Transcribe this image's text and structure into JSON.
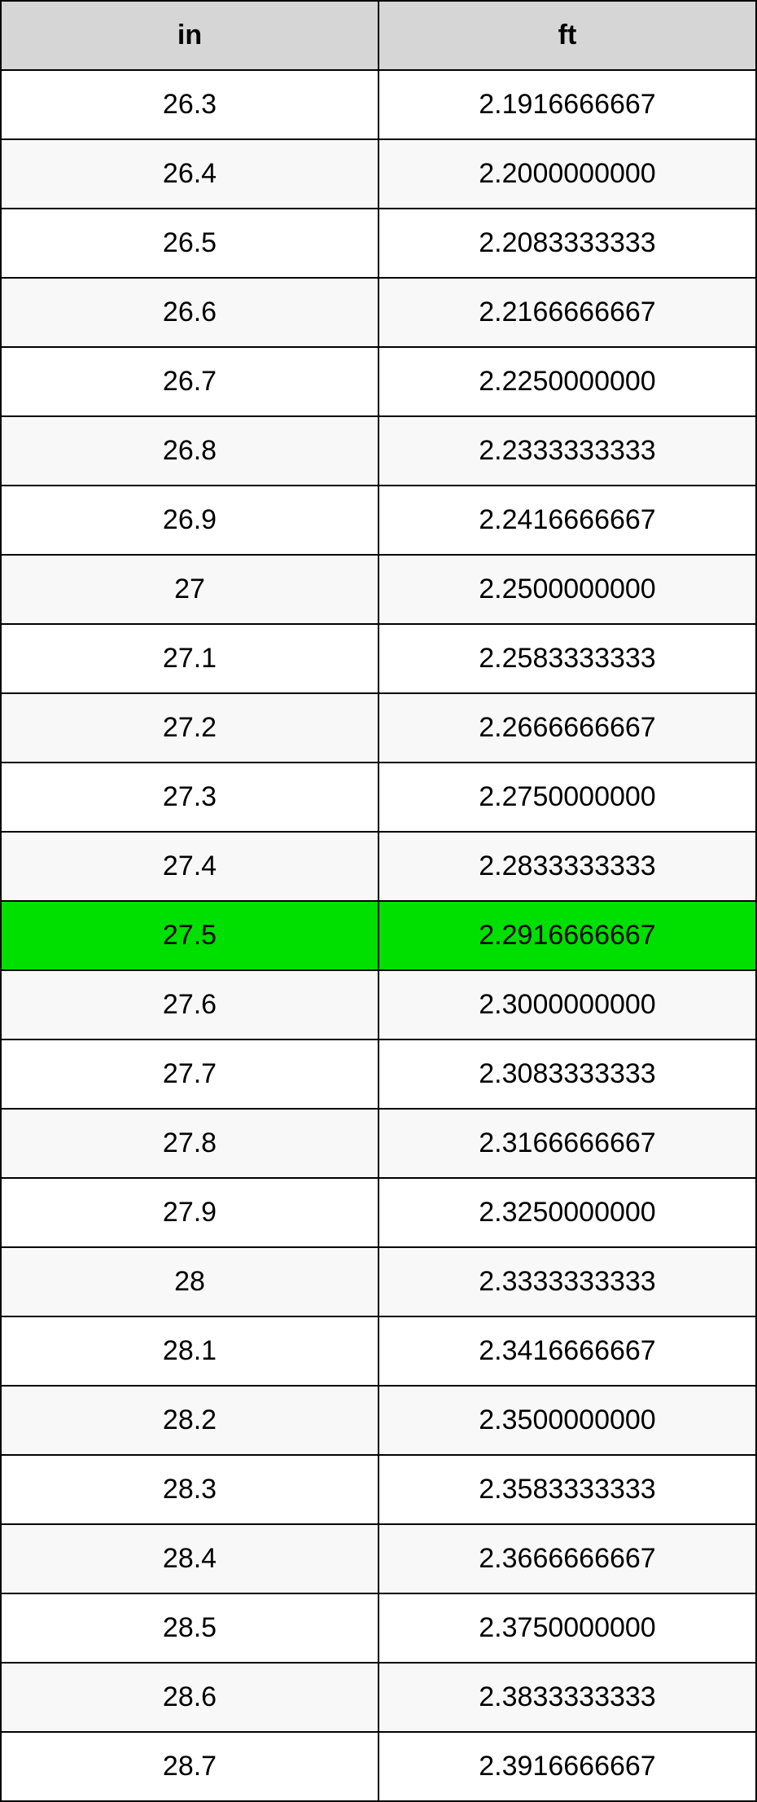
{
  "conversion_table": {
    "type": "table",
    "columns": [
      {
        "label": "in",
        "align": "center"
      },
      {
        "label": "ft",
        "align": "center"
      }
    ],
    "header_bg": "#d6d6d6",
    "row_bg": "#ffffff",
    "row_alt_bg": "#f8f8f8",
    "highlight_bg": "#00e000",
    "border_color": "#000000",
    "font_size": 34,
    "highlight_index": 12,
    "rows": [
      {
        "in": "26.3",
        "ft": "2.1916666667"
      },
      {
        "in": "26.4",
        "ft": "2.2000000000"
      },
      {
        "in": "26.5",
        "ft": "2.2083333333"
      },
      {
        "in": "26.6",
        "ft": "2.2166666667"
      },
      {
        "in": "26.7",
        "ft": "2.2250000000"
      },
      {
        "in": "26.8",
        "ft": "2.2333333333"
      },
      {
        "in": "26.9",
        "ft": "2.2416666667"
      },
      {
        "in": "27",
        "ft": "2.2500000000"
      },
      {
        "in": "27.1",
        "ft": "2.2583333333"
      },
      {
        "in": "27.2",
        "ft": "2.2666666667"
      },
      {
        "in": "27.3",
        "ft": "2.2750000000"
      },
      {
        "in": "27.4",
        "ft": "2.2833333333"
      },
      {
        "in": "27.5",
        "ft": "2.2916666667"
      },
      {
        "in": "27.6",
        "ft": "2.3000000000"
      },
      {
        "in": "27.7",
        "ft": "2.3083333333"
      },
      {
        "in": "27.8",
        "ft": "2.3166666667"
      },
      {
        "in": "27.9",
        "ft": "2.3250000000"
      },
      {
        "in": "28",
        "ft": "2.3333333333"
      },
      {
        "in": "28.1",
        "ft": "2.3416666667"
      },
      {
        "in": "28.2",
        "ft": "2.3500000000"
      },
      {
        "in": "28.3",
        "ft": "2.3583333333"
      },
      {
        "in": "28.4",
        "ft": "2.3666666667"
      },
      {
        "in": "28.5",
        "ft": "2.3750000000"
      },
      {
        "in": "28.6",
        "ft": "2.3833333333"
      },
      {
        "in": "28.7",
        "ft": "2.3916666667"
      }
    ]
  }
}
